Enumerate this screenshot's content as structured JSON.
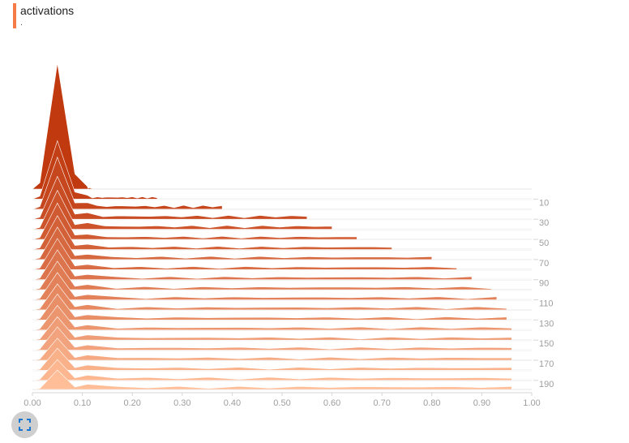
{
  "card": {
    "title": "activations",
    "subtitle": "."
  },
  "colors": {
    "accent": "#f57c46",
    "darkest": "#c0390f",
    "lightest": "#ffbe98",
    "axis_text": "#9e9e9e"
  },
  "controls": {
    "expand_icon": "fullscreen-icon"
  },
  "chart_data": {
    "type": "ridgeline-histogram",
    "title": "activations",
    "x_ticks": [
      "0.00",
      "0.10",
      "0.20",
      "0.30",
      "0.40",
      "0.50",
      "0.60",
      "0.70",
      "0.80",
      "0.90",
      "1.00"
    ],
    "xlim": [
      0,
      1
    ],
    "step_ticks": [
      "10",
      "30",
      "50",
      "70",
      "90",
      "110",
      "130",
      "150",
      "170",
      "190"
    ],
    "step_range": [
      0,
      199
    ],
    "slices": [
      {
        "step": 0,
        "peak_x": 0.05,
        "peak_height": 0.97,
        "tail_to": 0.12,
        "tail_height": 0.02
      },
      {
        "step": 10,
        "peak_x": 0.05,
        "peak_height": 0.45,
        "tail_to": 0.25,
        "tail_height": 0.03
      },
      {
        "step": 20,
        "peak_x": 0.05,
        "peak_height": 0.4,
        "tail_to": 0.38,
        "tail_height": 0.05
      },
      {
        "step": 30,
        "peak_x": 0.05,
        "peak_height": 0.33,
        "tail_to": 0.55,
        "tail_height": 0.05
      },
      {
        "step": 40,
        "peak_x": 0.05,
        "peak_height": 0.3,
        "tail_to": 0.6,
        "tail_height": 0.05
      },
      {
        "step": 50,
        "peak_x": 0.05,
        "peak_height": 0.28,
        "tail_to": 0.65,
        "tail_height": 0.04
      },
      {
        "step": 60,
        "peak_x": 0.05,
        "peak_height": 0.26,
        "tail_to": 0.72,
        "tail_height": 0.04
      },
      {
        "step": 70,
        "peak_x": 0.05,
        "peak_height": 0.25,
        "tail_to": 0.8,
        "tail_height": 0.04
      },
      {
        "step": 80,
        "peak_x": 0.05,
        "peak_height": 0.24,
        "tail_to": 0.85,
        "tail_height": 0.04
      },
      {
        "step": 90,
        "peak_x": 0.05,
        "peak_height": 0.23,
        "tail_to": 0.88,
        "tail_height": 0.04
      },
      {
        "step": 100,
        "peak_x": 0.05,
        "peak_height": 0.22,
        "tail_to": 0.92,
        "tail_height": 0.04
      },
      {
        "step": 110,
        "peak_x": 0.05,
        "peak_height": 0.21,
        "tail_to": 0.93,
        "tail_height": 0.04
      },
      {
        "step": 120,
        "peak_x": 0.05,
        "peak_height": 0.2,
        "tail_to": 0.95,
        "tail_height": 0.04
      },
      {
        "step": 130,
        "peak_x": 0.05,
        "peak_height": 0.2,
        "tail_to": 0.95,
        "tail_height": 0.04
      },
      {
        "step": 140,
        "peak_x": 0.05,
        "peak_height": 0.19,
        "tail_to": 0.96,
        "tail_height": 0.04
      },
      {
        "step": 150,
        "peak_x": 0.05,
        "peak_height": 0.18,
        "tail_to": 0.96,
        "tail_height": 0.04
      },
      {
        "step": 160,
        "peak_x": 0.05,
        "peak_height": 0.18,
        "tail_to": 0.96,
        "tail_height": 0.04
      },
      {
        "step": 170,
        "peak_x": 0.05,
        "peak_height": 0.17,
        "tail_to": 0.96,
        "tail_height": 0.04
      },
      {
        "step": 180,
        "peak_x": 0.05,
        "peak_height": 0.17,
        "tail_to": 0.96,
        "tail_height": 0.04
      },
      {
        "step": 190,
        "peak_x": 0.05,
        "peak_height": 0.16,
        "tail_to": 0.96,
        "tail_height": 0.04
      },
      {
        "step": 199,
        "peak_x": 0.05,
        "peak_height": 0.15,
        "tail_to": 0.96,
        "tail_height": 0.04
      }
    ],
    "grid": false,
    "legend": "none"
  }
}
